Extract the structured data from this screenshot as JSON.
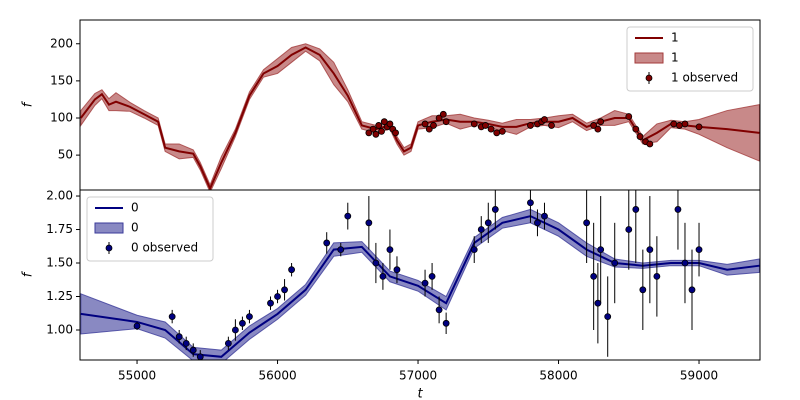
{
  "chart_data": [
    {
      "type": "line",
      "ylabel": "f",
      "legend": "upper right",
      "x": [
        54600,
        54700,
        54750,
        54800,
        54850,
        54950,
        55050,
        55100,
        55150,
        55200,
        55300,
        55400,
        55450,
        55520,
        55600,
        55700,
        55800,
        55900,
        56000,
        56100,
        56200,
        56300,
        56400,
        56500,
        56600,
        56700,
        56800,
        56850,
        56900,
        56950,
        57000,
        57100,
        57200,
        57300,
        57400,
        57500,
        57600,
        57700,
        57800,
        57900,
        58000,
        58100,
        58200,
        58300,
        58400,
        58500,
        58550,
        58600,
        58700,
        58800,
        58900,
        59000,
        59200,
        59430
      ],
      "series": [
        {
          "name": "1",
          "color": "#800000",
          "values": [
            100,
            125,
            132,
            118,
            122,
            115,
            105,
            100,
            95,
            60,
            55,
            52,
            35,
            5,
            40,
            80,
            130,
            160,
            170,
            185,
            195,
            185,
            160,
            130,
            90,
            85,
            90,
            70,
            55,
            60,
            90,
            95,
            98,
            95,
            95,
            92,
            88,
            88,
            93,
            95,
            95,
            100,
            88,
            95,
            100,
            100,
            85,
            70,
            80,
            92,
            90,
            88,
            85,
            80
          ]
        }
      ],
      "band": {
        "name": "1",
        "color": "#a33a3a",
        "lower": [
          90,
          117,
          126,
          110,
          110,
          109,
          100,
          95,
          90,
          55,
          45,
          47,
          30,
          0,
          32,
          75,
          125,
          155,
          160,
          175,
          190,
          177,
          145,
          122,
          85,
          80,
          85,
          65,
          50,
          55,
          85,
          87,
          93,
          85,
          90,
          87,
          83,
          78,
          88,
          90,
          87,
          95,
          83,
          90,
          90,
          95,
          80,
          65,
          68,
          87,
          85,
          78,
          60,
          42
        ],
        "upper": [
          110,
          133,
          138,
          126,
          134,
          121,
          110,
          105,
          100,
          65,
          65,
          57,
          40,
          10,
          48,
          85,
          135,
          165,
          180,
          195,
          200,
          193,
          175,
          138,
          95,
          90,
          95,
          75,
          60,
          65,
          95,
          103,
          103,
          105,
          100,
          97,
          93,
          98,
          98,
          100,
          103,
          105,
          93,
          100,
          110,
          105,
          90,
          75,
          92,
          97,
          95,
          98,
          110,
          118
        ]
      },
      "observed": {
        "name": "1 observed",
        "color": "#800000",
        "x": [
          56650,
          56680,
          56700,
          56720,
          56740,
          56760,
          56780,
          56800,
          56820,
          56840,
          57050,
          57080,
          57110,
          57150,
          57180,
          57200,
          57400,
          57450,
          57480,
          57520,
          57560,
          57600,
          57800,
          57850,
          57880,
          57900,
          57950,
          58250,
          58280,
          58300,
          58500,
          58550,
          58580,
          58620,
          58650,
          58820,
          58860,
          58900,
          59000
        ],
        "values": [
          80,
          85,
          78,
          90,
          82,
          95,
          88,
          92,
          85,
          80,
          92,
          85,
          90,
          100,
          105,
          95,
          92,
          88,
          90,
          85,
          80,
          82,
          90,
          92,
          95,
          98,
          90,
          90,
          85,
          95,
          102,
          85,
          75,
          68,
          65,
          92,
          90,
          92,
          88
        ],
        "errors": [
          3,
          3,
          3,
          3,
          3,
          3,
          3,
          3,
          3,
          3,
          3,
          3,
          3,
          3,
          3,
          3,
          3,
          3,
          3,
          3,
          3,
          3,
          3,
          3,
          3,
          3,
          3,
          3,
          3,
          3,
          3,
          3,
          3,
          3,
          3,
          3,
          3,
          3,
          3
        ]
      },
      "xlim": [
        54594,
        59434
      ],
      "ylim": [
        3,
        232
      ],
      "yticks": [
        50,
        100,
        150,
        200
      ]
    },
    {
      "type": "line",
      "ylabel": "f",
      "xlabel": "t",
      "legend": "upper left",
      "x": [
        54600,
        55000,
        55200,
        55400,
        55600,
        55800,
        56000,
        56200,
        56400,
        56600,
        56800,
        57000,
        57200,
        57400,
        57600,
        57800,
        58000,
        58200,
        58400,
        58600,
        58800,
        59000,
        59200,
        59430
      ],
      "series": [
        {
          "name": "0",
          "color": "#000080",
          "values": [
            1.12,
            1.06,
            1.0,
            0.82,
            0.8,
            0.98,
            1.12,
            1.3,
            1.6,
            1.62,
            1.4,
            1.33,
            1.2,
            1.65,
            1.8,
            1.85,
            1.75,
            1.6,
            1.5,
            1.48,
            1.5,
            1.5,
            1.45,
            1.48
          ]
        }
      ],
      "band": {
        "name": "0",
        "color": "#3a3a9a",
        "lower": [
          0.97,
          1.01,
          0.94,
          0.77,
          0.75,
          0.93,
          1.08,
          1.26,
          1.55,
          1.58,
          1.36,
          1.29,
          1.15,
          1.61,
          1.76,
          1.8,
          1.7,
          1.55,
          1.47,
          1.46,
          1.48,
          1.48,
          1.41,
          1.43
        ],
        "upper": [
          1.27,
          1.11,
          1.06,
          0.87,
          0.85,
          1.03,
          1.16,
          1.34,
          1.65,
          1.66,
          1.44,
          1.37,
          1.25,
          1.69,
          1.84,
          1.9,
          1.8,
          1.65,
          1.53,
          1.5,
          1.52,
          1.52,
          1.49,
          1.53
        ]
      },
      "observed": {
        "name": "0 observed",
        "color": "#000080",
        "x": [
          55000,
          55250,
          55300,
          55350,
          55400,
          55450,
          55650,
          55700,
          55750,
          55800,
          55950,
          56000,
          56050,
          56100,
          56350,
          56450,
          56500,
          56650,
          56700,
          56750,
          56800,
          56850,
          57050,
          57100,
          57150,
          57200,
          57400,
          57450,
          57500,
          57550,
          57800,
          57850,
          57900,
          58200,
          58250,
          58280,
          58300,
          58350,
          58400,
          58500,
          58550,
          58600,
          58650,
          58700,
          58850,
          58900,
          58950,
          59000
        ],
        "values": [
          1.03,
          1.1,
          0.95,
          0.9,
          0.85,
          0.8,
          0.9,
          1.0,
          1.05,
          1.1,
          1.2,
          1.25,
          1.3,
          1.45,
          1.65,
          1.6,
          1.85,
          1.8,
          1.5,
          1.4,
          1.6,
          1.45,
          1.35,
          1.4,
          1.15,
          1.05,
          1.6,
          1.75,
          1.8,
          1.9,
          1.95,
          1.8,
          1.85,
          1.8,
          1.4,
          1.2,
          1.6,
          1.1,
          1.5,
          1.75,
          1.9,
          1.3,
          1.6,
          1.4,
          1.9,
          1.5,
          1.3,
          1.6
        ],
        "errors": [
          0.03,
          0.05,
          0.05,
          0.05,
          0.05,
          0.05,
          0.05,
          0.08,
          0.05,
          0.05,
          0.05,
          0.05,
          0.08,
          0.05,
          0.08,
          0.05,
          0.1,
          0.2,
          0.15,
          0.1,
          0.15,
          0.1,
          0.1,
          0.1,
          0.1,
          0.08,
          0.1,
          0.1,
          0.15,
          0.15,
          0.15,
          0.1,
          0.1,
          0.3,
          0.4,
          0.3,
          0.4,
          0.3,
          0.3,
          0.3,
          0.4,
          0.3,
          0.4,
          0.3,
          0.3,
          0.3,
          0.3,
          0.2
        ]
      },
      "xlim": [
        54594,
        59434
      ],
      "ylim": [
        0.776,
        2.045
      ],
      "yticks": [
        {
          "value": 1,
          "label": "1.00"
        },
        {
          "value": 1.25,
          "label": "1.25"
        },
        {
          "value": 1.5,
          "label": "1.50"
        },
        {
          "value": 1.75,
          "label": "1.75"
        },
        {
          "value": 2,
          "label": "2.00"
        }
      ],
      "xticks": [
        55000,
        56000,
        57000,
        58000,
        59000
      ]
    }
  ]
}
